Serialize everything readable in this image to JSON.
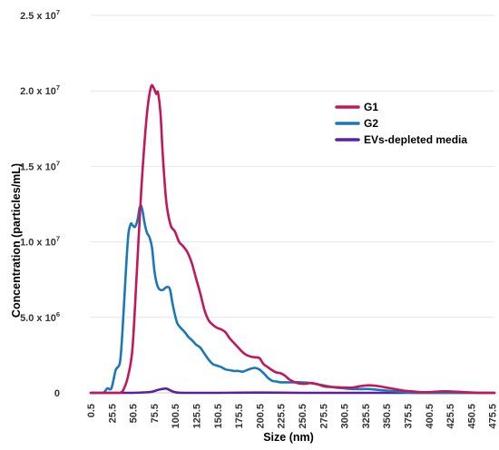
{
  "chart_data": {
    "type": "line",
    "xlabel": "Size (nm)",
    "ylabel": "Concentration (particles/mL)",
    "xlim": [
      0.5,
      478
    ],
    "ylim": [
      0,
      25000000
    ],
    "grid": true,
    "legend_position": "top-right",
    "x_ticks": [
      0.5,
      25.5,
      50.5,
      75.5,
      100.5,
      125.5,
      150.5,
      175.5,
      200.5,
      225.5,
      250.5,
      275.5,
      300.5,
      325.5,
      350.5,
      375.5,
      400.5,
      425.5,
      450.5,
      475.5
    ],
    "x_tick_labels": [
      "0.5",
      "25.5",
      "50.5",
      "75.5",
      "100.5",
      "125.5",
      "150.5",
      "175.5",
      "200.5",
      "225.5",
      "250.5",
      "275.5",
      "300.5",
      "325.5",
      "350.5",
      "375.5",
      "400.5",
      "425.5",
      "450.5",
      "475.5"
    ],
    "y_ticks": [
      {
        "value": 0,
        "label": "0",
        "mantissa": "",
        "exponent": ""
      },
      {
        "value": 5000000,
        "label": "5.0 x 10^6",
        "mantissa": "5.0 x 10",
        "exponent": "6"
      },
      {
        "value": 10000000,
        "label": "1.0 x 10^7",
        "mantissa": "1.0 x 10",
        "exponent": "7"
      },
      {
        "value": 15000000,
        "label": "1.5 x 10^7",
        "mantissa": "1.5 x 10",
        "exponent": "7"
      },
      {
        "value": 20000000,
        "label": "2.0 x 10^7",
        "mantissa": "2.0 x 10",
        "exponent": "7"
      },
      {
        "value": 25000000,
        "label": "2.5 x 10^7",
        "mantissa": "2.5 x 10",
        "exponent": "7"
      }
    ],
    "series": [
      {
        "name": "G1",
        "color": "#c2185b",
        "x": [
          0.5,
          20,
          35,
          40,
          45,
          50,
          55,
          60,
          65,
          68,
          72,
          75,
          78,
          80,
          83,
          86,
          90,
          95,
          100,
          105,
          110,
          115,
          120,
          125,
          130,
          135,
          140,
          145,
          150,
          155,
          160,
          165,
          170,
          175,
          180,
          185,
          190,
          195,
          200,
          205,
          210,
          215,
          220,
          225,
          230,
          235,
          240,
          245,
          250,
          255,
          260,
          265,
          270,
          275,
          280,
          290,
          300,
          310,
          320,
          330,
          340,
          350,
          360,
          370,
          380,
          390,
          400,
          420,
          440,
          460,
          478
        ],
        "y": [
          0,
          0,
          0,
          300000,
          1200000,
          3000000,
          8000000,
          13200000,
          17200000,
          19000000,
          20300000,
          20200000,
          19800000,
          19900000,
          18500000,
          15500000,
          12600000,
          11100000,
          10700000,
          10000000,
          9700000,
          9300000,
          8600000,
          7600000,
          6600000,
          5500000,
          4800000,
          4500000,
          4300000,
          4200000,
          4000000,
          3600000,
          3300000,
          3000000,
          2700000,
          2500000,
          2400000,
          2350000,
          2300000,
          1900000,
          1700000,
          1500000,
          1350000,
          1300000,
          1150000,
          900000,
          750000,
          650000,
          600000,
          600000,
          650000,
          620000,
          550000,
          450000,
          400000,
          380000,
          350000,
          350000,
          450000,
          500000,
          450000,
          350000,
          250000,
          150000,
          100000,
          50000,
          50000,
          100000,
          50000,
          0,
          0
        ]
      },
      {
        "name": "G2",
        "color": "#1a78b8",
        "x": [
          0.5,
          15,
          20,
          25,
          30,
          35,
          38,
          42,
          45,
          48,
          50,
          53,
          56,
          58,
          60,
          62,
          64,
          67,
          70,
          73,
          76,
          80,
          85,
          90,
          94,
          97,
          100,
          103,
          107,
          112,
          116,
          120,
          125,
          130,
          135,
          140,
          145,
          150,
          155,
          160,
          165,
          170,
          175,
          180,
          185,
          190,
          195,
          200,
          205,
          210,
          215,
          220,
          225,
          230,
          240,
          250,
          260,
          270,
          280,
          290,
          300,
          310,
          320,
          330,
          340,
          350,
          360,
          370,
          380,
          400,
          420,
          440,
          460,
          478
        ],
        "y": [
          0,
          0,
          300000,
          300000,
          1500000,
          2000000,
          4000000,
          8000000,
          10500000,
          11200000,
          11100000,
          11000000,
          11500000,
          12200000,
          12400000,
          12000000,
          11300000,
          10600000,
          10300000,
          9600000,
          8000000,
          7000000,
          6800000,
          7000000,
          6900000,
          6000000,
          5200000,
          4600000,
          4300000,
          4000000,
          3700000,
          3500000,
          3200000,
          3000000,
          2600000,
          2200000,
          1900000,
          1800000,
          1700000,
          1550000,
          1500000,
          1450000,
          1450000,
          1400000,
          1500000,
          1600000,
          1650000,
          1550000,
          1300000,
          1000000,
          800000,
          750000,
          700000,
          700000,
          700000,
          700000,
          650000,
          550000,
          450000,
          350000,
          300000,
          250000,
          250000,
          250000,
          200000,
          150000,
          100000,
          50000,
          0,
          0,
          0,
          0,
          0,
          0
        ]
      },
      {
        "name": "EVs-depleted media",
        "color": "#5c1f9e",
        "x": [
          0.5,
          50,
          70,
          75,
          80,
          85,
          90,
          95,
          100,
          110,
          150,
          200,
          250,
          300,
          350,
          400,
          478
        ],
        "y": [
          0,
          0,
          50000,
          100000,
          200000,
          250000,
          280000,
          150000,
          50000,
          0,
          0,
          20000,
          0,
          0,
          0,
          0,
          0
        ]
      }
    ]
  }
}
